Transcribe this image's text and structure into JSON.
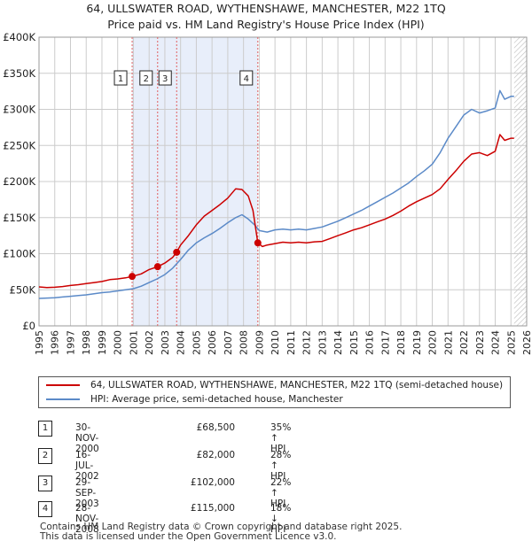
{
  "title_line1": "64, ULLSWATER ROAD, WYTHENSHAWE, MANCHESTER, M22 1TQ",
  "title_line2": "Price paid vs. HM Land Registry's House Price Index (HPI)",
  "colors": {
    "property": "#cc0000",
    "hpi": "#5b8ac8",
    "shade": "#e8eefa",
    "grid": "#cccccc",
    "marker_line": "#e06060"
  },
  "chart_data": {
    "type": "line",
    "title": "Price paid vs. HM Land Registry's House Price Index (HPI)",
    "xlim": [
      1995,
      2026
    ],
    "ylim": [
      0,
      400000
    ],
    "x_ticks": [
      "1995",
      "1996",
      "1997",
      "1998",
      "1999",
      "2000",
      "2001",
      "2002",
      "2003",
      "2004",
      "2005",
      "2006",
      "2007",
      "2008",
      "2009",
      "2010",
      "2011",
      "2012",
      "2013",
      "2014",
      "2015",
      "2016",
      "2017",
      "2018",
      "2019",
      "2020",
      "2021",
      "2022",
      "2023",
      "2024",
      "2025",
      "2026"
    ],
    "y_ticks": [
      {
        "value": 0,
        "label": "£0"
      },
      {
        "value": 50000,
        "label": "£50K"
      },
      {
        "value": 100000,
        "label": "£100K"
      },
      {
        "value": 150000,
        "label": "£150K"
      },
      {
        "value": 200000,
        "label": "£200K"
      },
      {
        "value": 250000,
        "label": "£250K"
      },
      {
        "value": 300000,
        "label": "£300K"
      },
      {
        "value": 350000,
        "label": "£350K"
      },
      {
        "value": 400000,
        "label": "£400K"
      }
    ],
    "grid": true,
    "shaded_periods": [
      [
        2000.92,
        2008.91
      ]
    ],
    "hatched_from": 2025.2,
    "series": [
      {
        "name": "64, ULLSWATER ROAD, WYTHENSHAWE, MANCHESTER, M22 1TQ (semi-detached house)",
        "color": "#cc0000",
        "x": [
          1995.0,
          1995.5,
          1996.0,
          1996.5,
          1997.0,
          1997.5,
          1998.0,
          1998.5,
          1999.0,
          1999.5,
          2000.0,
          2000.5,
          2000.92,
          2001.5,
          2002.0,
          2002.54,
          2003.0,
          2003.5,
          2003.75,
          2004.0,
          2004.5,
          2005.0,
          2005.5,
          2006.0,
          2006.5,
          2007.0,
          2007.5,
          2007.9,
          2008.3,
          2008.6,
          2008.91,
          2009.2,
          2009.5,
          2010.0,
          2010.5,
          2011.0,
          2011.5,
          2012.0,
          2012.5,
          2013.0,
          2013.5,
          2014.0,
          2014.5,
          2015.0,
          2015.5,
          2016.0,
          2016.5,
          2017.0,
          2017.5,
          2018.0,
          2018.5,
          2019.0,
          2019.5,
          2020.0,
          2020.5,
          2021.0,
          2021.5,
          2022.0,
          2022.5,
          2023.0,
          2023.5,
          2024.0,
          2024.3,
          2024.6,
          2025.0,
          2025.2
        ],
        "y": [
          54000,
          53000,
          53500,
          54500,
          56000,
          57000,
          58500,
          60000,
          61500,
          64000,
          65000,
          66500,
          68500,
          72000,
          78000,
          82000,
          87000,
          95000,
          102000,
          112000,
          125000,
          140000,
          152000,
          160000,
          168000,
          177000,
          190000,
          189000,
          180000,
          160000,
          115000,
          110000,
          112000,
          114000,
          116000,
          115000,
          116000,
          115000,
          116500,
          117000,
          121000,
          125000,
          129000,
          133000,
          136000,
          140000,
          144000,
          148000,
          153000,
          159000,
          166000,
          172000,
          177000,
          182000,
          190000,
          203000,
          215000,
          228000,
          238000,
          240000,
          236000,
          242000,
          265000,
          257000,
          260000,
          260000
        ]
      },
      {
        "name": "HPI: Average price, semi-detached house, Manchester",
        "color": "#5b8ac8",
        "x": [
          1995.0,
          1995.5,
          1996.0,
          1996.5,
          1997.0,
          1997.5,
          1998.0,
          1998.5,
          1999.0,
          1999.5,
          2000.0,
          2000.5,
          2001.0,
          2001.5,
          2002.0,
          2002.5,
          2003.0,
          2003.5,
          2004.0,
          2004.5,
          2005.0,
          2005.5,
          2006.0,
          2006.5,
          2007.0,
          2007.5,
          2007.9,
          2008.3,
          2008.7,
          2009.0,
          2009.5,
          2010.0,
          2010.5,
          2011.0,
          2011.5,
          2012.0,
          2012.5,
          2013.0,
          2013.5,
          2014.0,
          2014.5,
          2015.0,
          2015.5,
          2016.0,
          2016.5,
          2017.0,
          2017.5,
          2018.0,
          2018.5,
          2019.0,
          2019.5,
          2020.0,
          2020.5,
          2021.0,
          2021.5,
          2022.0,
          2022.5,
          2023.0,
          2023.5,
          2024.0,
          2024.3,
          2024.6,
          2025.0,
          2025.2
        ],
        "y": [
          38000,
          38500,
          39000,
          40000,
          41000,
          42000,
          43000,
          44500,
          46000,
          47000,
          48500,
          50000,
          51500,
          55000,
          60000,
          65000,
          71000,
          80000,
          92000,
          105000,
          115000,
          122000,
          128000,
          135000,
          143000,
          150000,
          154000,
          148000,
          140000,
          132000,
          130000,
          133000,
          134000,
          133000,
          134000,
          133000,
          135000,
          137000,
          141000,
          145000,
          150000,
          155000,
          160000,
          166000,
          172000,
          178000,
          184000,
          191000,
          198000,
          207000,
          215000,
          224000,
          240000,
          260000,
          276000,
          292000,
          300000,
          295000,
          298000,
          302000,
          326000,
          314000,
          318000,
          318000
        ]
      }
    ],
    "transactions": [
      {
        "num": "1",
        "date": "30-NOV-2000",
        "price": "£68,500",
        "hpi": "35% ↑ HPI",
        "x": 2000.92,
        "y": 68500
      },
      {
        "num": "2",
        "date": "16-JUL-2002",
        "price": "£82,000",
        "hpi": "28% ↑ HPI",
        "x": 2002.54,
        "y": 82000
      },
      {
        "num": "3",
        "date": "29-SEP-2003",
        "price": "£102,000",
        "hpi": "22% ↑ HPI",
        "x": 2003.75,
        "y": 102000
      },
      {
        "num": "4",
        "date": "28-NOV-2008",
        "price": "£115,000",
        "hpi": "18% ↓ HPI",
        "x": 2008.91,
        "y": 115000
      }
    ]
  },
  "legend": [
    {
      "label": "64, ULLSWATER ROAD, WYTHENSHAWE, MANCHESTER, M22 1TQ (semi-detached house)",
      "color": "#cc0000"
    },
    {
      "label": "HPI: Average price, semi-detached house, Manchester",
      "color": "#5b8ac8"
    }
  ],
  "footer_line1": "Contains HM Land Registry data © Crown copyright and database right 2025.",
  "footer_line2": "This data is licensed under the Open Government Licence v3.0."
}
